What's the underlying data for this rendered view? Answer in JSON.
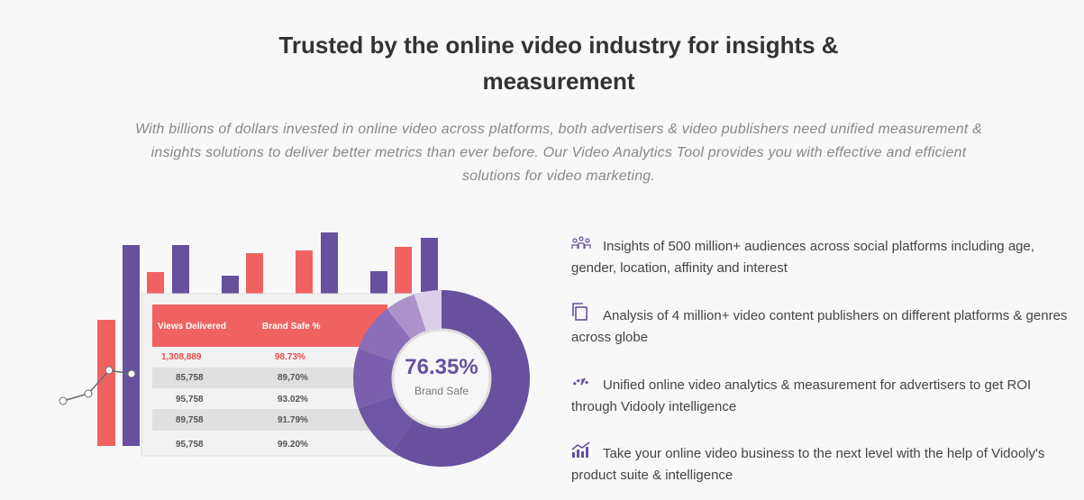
{
  "header": {
    "title": "Trusted by the online video industry for insights & measurement",
    "description": "With billions of dollars invested in online video across platforms, both advertisers & video publishers need unified measurement & insights solutions to deliver better metrics than ever before. Our Video Analytics Tool provides you with effective and efficient solutions for video marketing."
  },
  "table": {
    "headers": [
      "Views Delivered",
      "Brand Safe %"
    ],
    "rows": [
      [
        "1,308,889",
        "98.73%"
      ],
      [
        "85,758",
        "89,70%"
      ],
      [
        "95,758",
        "93.02%"
      ],
      [
        "89,758",
        "91.79%"
      ],
      [
        "95,758",
        "99.20%"
      ]
    ]
  },
  "donut": {
    "value": "76.35%",
    "label": "Brand Safe"
  },
  "features": [
    "Insights of 500 million+ audiences across social platforms including age, gender, location, affinity and interest",
    "Analysis of 4 million+ video content publishers on different platforms & genres across globe",
    "Unified online video analytics & measurement for advertisers to get ROI through Vidooly intelligence",
    "Take your online video business to the next level with the help of Vidooly's product suite & intelligence"
  ]
}
